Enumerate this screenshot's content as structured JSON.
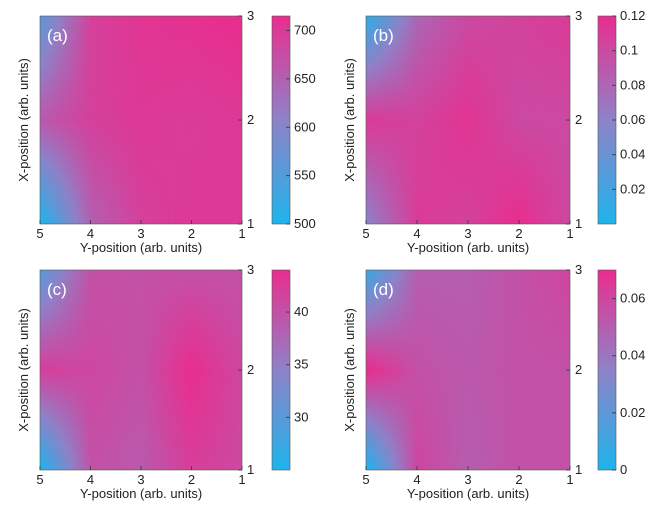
{
  "colors": {
    "low": "#1eb4ec",
    "mid": "#8e82c8",
    "high": "#ea2d8e"
  },
  "chart_data": [
    {
      "type": "heatmap",
      "panel": "(a)",
      "x": [
        5,
        4,
        3,
        2,
        1
      ],
      "y": [
        1,
        2,
        3
      ],
      "xlabel": "Y-position (arb. units)",
      "ylabel": "X-position (arb. units)",
      "xticks": [
        "5",
        "4",
        "3",
        "2",
        "1"
      ],
      "yticks": [
        "1",
        "2",
        "3"
      ],
      "values": [
        [
          500,
          650,
          690,
          700,
          700
        ],
        [
          660,
          690,
          700,
          695,
          700
        ],
        [
          560,
          690,
          705,
          710,
          715
        ]
      ],
      "colorbar": {
        "range": [
          500,
          715
        ],
        "ticks": [
          "500",
          "550",
          "600",
          "650",
          "700"
        ]
      }
    },
    {
      "type": "heatmap",
      "panel": "(b)",
      "x": [
        5,
        4,
        3,
        2,
        1
      ],
      "y": [
        1,
        2,
        3
      ],
      "xlabel": "Y-position (arb. units)",
      "ylabel": "X-position (arb. units)",
      "xticks": [
        "5",
        "4",
        "3",
        "2",
        "1"
      ],
      "yticks": [
        "1",
        "2",
        "3"
      ],
      "values": [
        [
          0.06,
          0.11,
          0.105,
          0.12,
          0.1
        ],
        [
          0.11,
          0.105,
          0.115,
          0.1,
          0.1
        ],
        [
          0.01,
          0.08,
          0.1,
          0.105,
          0.11
        ]
      ],
      "colorbar": {
        "range": [
          0,
          0.12
        ],
        "ticks": [
          "0.02",
          "0.04",
          "0.06",
          "0.08",
          "0.1",
          "0.12"
        ]
      }
    },
    {
      "type": "heatmap",
      "panel": "(c)",
      "x": [
        5,
        4,
        3,
        2,
        1
      ],
      "y": [
        1,
        2,
        3
      ],
      "xlabel": "Y-position (arb. units)",
      "ylabel": "X-position (arb. units)",
      "xticks": [
        "5",
        "4",
        "3",
        "2",
        "1"
      ],
      "yticks": [
        "1",
        "2",
        "3"
      ],
      "values": [
        [
          25,
          40,
          39,
          42,
          41
        ],
        [
          42,
          41,
          40,
          44,
          41
        ],
        [
          30,
          40,
          40,
          40,
          40
        ]
      ],
      "colorbar": {
        "range": [
          25,
          44
        ],
        "ticks": [
          "30",
          "35",
          "40"
        ]
      }
    },
    {
      "type": "heatmap",
      "panel": "(d)",
      "x": [
        5,
        4,
        3,
        2,
        1
      ],
      "y": [
        1,
        2,
        3
      ],
      "xlabel": "Y-position (arb. units)",
      "ylabel": "X-position (arb. units)",
      "xticks": [
        "5",
        "4",
        "3",
        "2",
        "1"
      ],
      "yticks": [
        "1",
        "2",
        "3"
      ],
      "values": [
        [
          0.0,
          0.06,
          0.05,
          0.055,
          0.055
        ],
        [
          0.07,
          0.055,
          0.052,
          0.055,
          0.055
        ],
        [
          0.01,
          0.05,
          0.05,
          0.055,
          0.06
        ]
      ],
      "colorbar": {
        "range": [
          0,
          0.07
        ],
        "ticks": [
          "0",
          "0.02",
          "0.04",
          "0.06"
        ]
      }
    }
  ]
}
